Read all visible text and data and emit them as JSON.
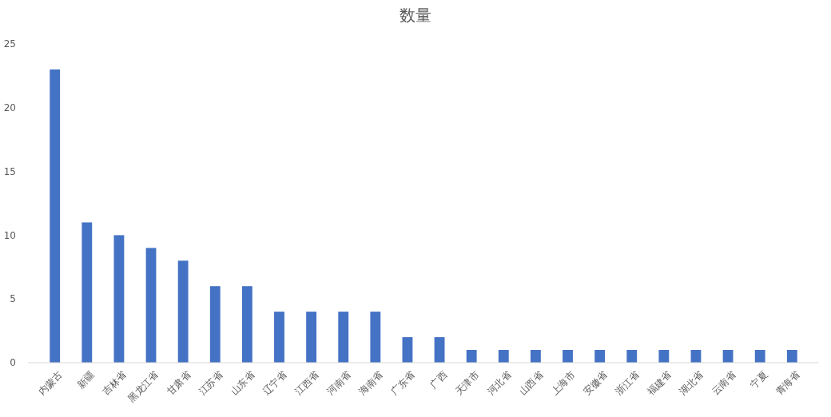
{
  "chart_data": {
    "type": "bar",
    "title": "数量",
    "categories": [
      "内蒙古",
      "新疆",
      "吉林省",
      "黑龙江省",
      "甘肃省",
      "江苏省",
      "山东省",
      "辽宁省",
      "江西省",
      "河南省",
      "海南省",
      "广东省",
      "广西",
      "天津市",
      "河北省",
      "山西省",
      "上海市",
      "安徽省",
      "浙江省",
      "福建省",
      "湖北省",
      "云南省",
      "宁夏",
      "青海省"
    ],
    "values": [
      23,
      11,
      10,
      9,
      8,
      6,
      6,
      4,
      4,
      4,
      4,
      2,
      2,
      1,
      1,
      1,
      1,
      1,
      1,
      1,
      1,
      1,
      1,
      1
    ],
    "color": "#4472c4",
    "ylim": [
      0,
      25
    ],
    "yticks": [
      0,
      5,
      10,
      15,
      20,
      25
    ],
    "grid": false
  }
}
